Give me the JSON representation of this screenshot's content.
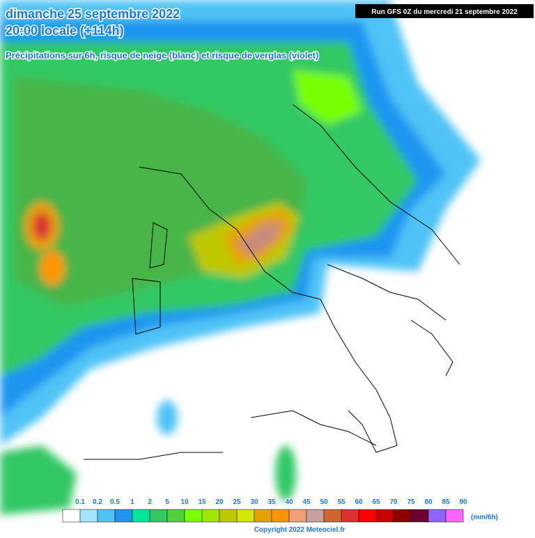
{
  "header": {
    "title_line1": "dimanche 25 septembre 2022",
    "title_line2": "20:00 locale (+114h)",
    "subtitle": "Précipitations sur 6h, risque de neige (blanc) et risque de verglas (violet)",
    "run": "Run GFS 0Z du mercredi 21 septembre 2022"
  },
  "legend": {
    "labels": [
      "0.1",
      "0.2",
      "0.5",
      "1",
      "2",
      "5",
      "10",
      "15",
      "20",
      "25",
      "30",
      "35",
      "40",
      "45",
      "50",
      "55",
      "60",
      "65",
      "70",
      "75",
      "80",
      "85",
      "90"
    ],
    "colors": [
      "#ffffff",
      "#a0e6ff",
      "#50c3f5",
      "#1e96f0",
      "#00e69b",
      "#32c864",
      "#50d23c",
      "#78ff00",
      "#a0e600",
      "#bec800",
      "#d2e600",
      "#e6a000",
      "#ff9600",
      "#f0a078",
      "#c8a0a0",
      "#d26432",
      "#dc3232",
      "#ff0000",
      "#c80000",
      "#8c0000",
      "#6e0032",
      "#8c64ff",
      "#ff64ff"
    ],
    "unit": "(mm/6h)"
  },
  "footer": {
    "copyright": "Copyright 2022 Meteociel.fr"
  }
}
